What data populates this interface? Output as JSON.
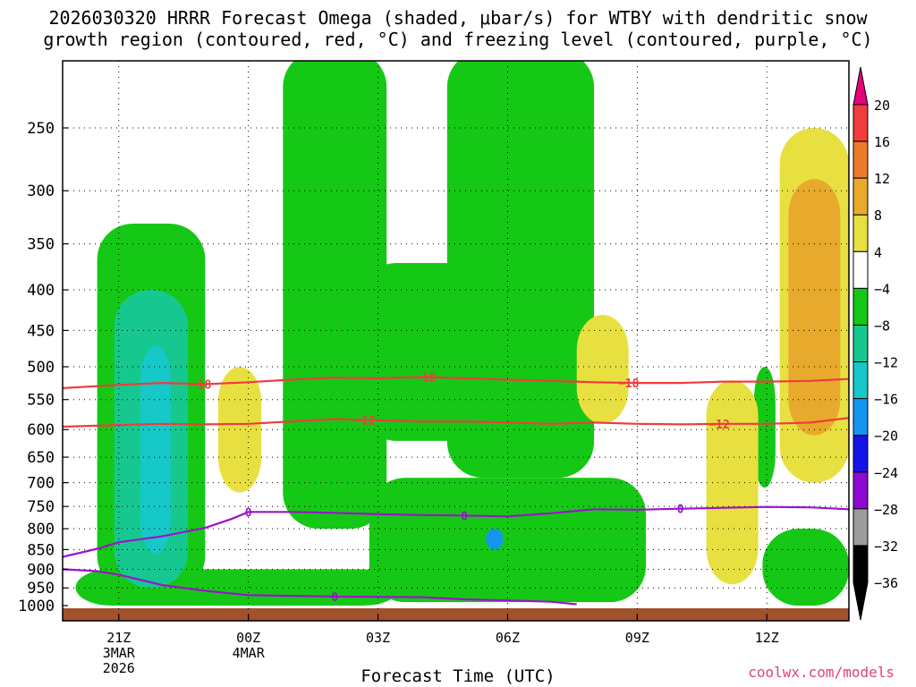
{
  "title_line1": "2026030320 HRRR Forecast Omega (shaded, μbar/s) for WTBY with dendritic snow",
  "title_line2": "growth region (contoured, red, °C) and freezing level (contoured, purple, °C)",
  "xlabel": "Forecast Time (UTC)",
  "credit": "coolwx.com/models",
  "chart_data": {
    "type": "heatmap",
    "y_axis": {
      "scale": "log",
      "reversed": true,
      "range": [
        200,
        1000
      ],
      "ticks": [
        250,
        300,
        350,
        400,
        450,
        500,
        550,
        600,
        650,
        700,
        750,
        800,
        850,
        900,
        950,
        1000
      ]
    },
    "x_axis": {
      "range_hours": [
        19.7,
        37.9
      ],
      "ticks": [
        {
          "hour": 21,
          "lines": [
            "21Z",
            "3MAR",
            "2026"
          ]
        },
        {
          "hour": 24,
          "lines": [
            "00Z",
            "4MAR"
          ]
        },
        {
          "hour": 27,
          "lines": [
            "03Z"
          ]
        },
        {
          "hour": 30,
          "lines": [
            "06Z"
          ]
        },
        {
          "hour": 33,
          "lines": [
            "09Z"
          ]
        },
        {
          "hour": 36,
          "lines": [
            "12Z"
          ]
        }
      ]
    },
    "grid": true,
    "colorbar": {
      "labels": [
        "20",
        "16",
        "12",
        "8",
        "4",
        "−4",
        "−8",
        "−12",
        "−16",
        "−20",
        "−24",
        "−28",
        "−32",
        "−36"
      ],
      "colors": [
        "#e8007a",
        "#f03c3c",
        "#ec7a2a",
        "#e8aa2c",
        "#e8e040",
        "#ffffff",
        "#16c816",
        "#16c890",
        "#16c8c8",
        "#1496f0",
        "#1414e8",
        "#8c0ad2",
        "#9c9c9c",
        "#000000"
      ]
    },
    "contours": {
      "dgz_red": [
        {
          "label": "−18",
          "level_c": -18,
          "points": [
            [
              19.7,
              532
            ],
            [
              21,
              527
            ],
            [
              22,
              524
            ],
            [
              23,
              526
            ],
            [
              24,
              523
            ],
            [
              25,
              519
            ],
            [
              26,
              516
            ],
            [
              27,
              517
            ],
            [
              28,
              515
            ],
            [
              29,
              517
            ],
            [
              30,
              519
            ],
            [
              31,
              521
            ],
            [
              32,
              523
            ],
            [
              33,
              524
            ],
            [
              34,
              524
            ],
            [
              35,
              522
            ],
            [
              36,
              522
            ],
            [
              37,
              521
            ],
            [
              37.9,
              518
            ]
          ],
          "label_hours": [
            22.9,
            28.1,
            32.8
          ]
        },
        {
          "label": "−12",
          "level_c": -12,
          "points": [
            [
              19.7,
              595
            ],
            [
              21,
              592
            ],
            [
              22,
              590
            ],
            [
              23,
              591
            ],
            [
              24,
              590
            ],
            [
              25,
              586
            ],
            [
              26,
              582
            ],
            [
              27,
              584
            ],
            [
              28,
              586
            ],
            [
              29,
              586
            ],
            [
              30,
              588
            ],
            [
              31,
              590
            ],
            [
              32,
              588
            ],
            [
              33,
              590
            ],
            [
              34,
              591
            ],
            [
              35,
              590
            ],
            [
              36,
              590
            ],
            [
              37,
              588
            ],
            [
              37.9,
              580
            ]
          ],
          "label_hours": [
            26.7,
            34.9
          ]
        }
      ],
      "freezing_purple": [
        {
          "label": "0",
          "level_c": 0,
          "points": [
            [
              19.7,
              868
            ],
            [
              20.5,
              848
            ],
            [
              21,
              832
            ],
            [
              22,
              818
            ],
            [
              23,
              798
            ],
            [
              23.6,
              778
            ],
            [
              24,
              762
            ],
            [
              25,
              762
            ],
            [
              26,
              764
            ],
            [
              27,
              767
            ],
            [
              28,
              769
            ],
            [
              29,
              770
            ],
            [
              30,
              772
            ],
            [
              31,
              765
            ],
            [
              32,
              756
            ],
            [
              33,
              757
            ],
            [
              34,
              755
            ],
            [
              35,
              753
            ],
            [
              36,
              751
            ],
            [
              37,
              752
            ],
            [
              37.9,
              756
            ]
          ],
          "label_hours": [
            24,
            29,
            34
          ]
        },
        {
          "label": "0",
          "level_c": 0,
          "points": [
            [
              19.7,
              900
            ],
            [
              20.5,
              905
            ],
            [
              21,
              914
            ],
            [
              22,
              942
            ],
            [
              23,
              958
            ],
            [
              24,
              970
            ],
            [
              25,
              972
            ],
            [
              26,
              974
            ],
            [
              27,
              975
            ],
            [
              28,
              976
            ],
            [
              29,
              982
            ],
            [
              30,
              985
            ],
            [
              31,
              989
            ],
            [
              31.6,
              996
            ]
          ],
          "label_hours": [
            26
          ]
        }
      ]
    },
    "shading_regions": [
      {
        "level": "−4 to −8",
        "color": "#16c816",
        "hours": [
          20.5,
          23
        ],
        "pressure": [
          330,
          960
        ]
      },
      {
        "level": "−4 to −8",
        "color": "#16c816",
        "hours": [
          20,
          27.5
        ],
        "pressure": [
          900,
          1000
        ]
      },
      {
        "level": "−4 to −8",
        "color": "#16c816",
        "hours": [
          24.8,
          27.2
        ],
        "pressure": [
          200,
          800
        ]
      },
      {
        "level": "−4 to −8",
        "color": "#16c816",
        "hours": [
          26.6,
          29.4
        ],
        "pressure": [
          370,
          620
        ]
      },
      {
        "level": "−4 to −8",
        "color": "#16c816",
        "hours": [
          28.6,
          32
        ],
        "pressure": [
          200,
          690
        ]
      },
      {
        "level": "−4 to −8",
        "color": "#16c816",
        "hours": [
          26.8,
          33.2
        ],
        "pressure": [
          690,
          990
        ]
      },
      {
        "level": "−4 to −8",
        "color": "#16c816",
        "hours": [
          35.7,
          36.2
        ],
        "pressure": [
          500,
          710
        ]
      },
      {
        "level": "−4 to −8",
        "color": "#16c816",
        "hours": [
          35.9,
          37.9
        ],
        "pressure": [
          800,
          1000
        ]
      },
      {
        "level": "−8 to −12",
        "color": "#16c890",
        "hours": [
          20.9,
          22.6
        ],
        "pressure": [
          400,
          950
        ]
      },
      {
        "level": "−12 to −16",
        "color": "#16c8c8",
        "hours": [
          21.5,
          22.2
        ],
        "pressure": [
          470,
          860
        ]
      },
      {
        "level": "−16 to −20",
        "color": "#1496f0",
        "hours": [
          29.5,
          29.9
        ],
        "pressure": [
          800,
          850
        ]
      },
      {
        "level": "4 to 8",
        "color": "#e8e040",
        "hours": [
          23.3,
          24.3
        ],
        "pressure": [
          500,
          720
        ]
      },
      {
        "level": "4 to 8",
        "color": "#e8e040",
        "hours": [
          31.6,
          32.8
        ],
        "pressure": [
          430,
          590
        ]
      },
      {
        "level": "4 to 8",
        "color": "#e8e040",
        "hours": [
          34.6,
          35.8
        ],
        "pressure": [
          520,
          940
        ]
      },
      {
        "level": "4 to 8",
        "color": "#e8e040",
        "hours": [
          36.3,
          37.9
        ],
        "pressure": [
          250,
          700
        ]
      },
      {
        "level": "8 to 12",
        "color": "#e8aa2c",
        "hours": [
          36.5,
          37.7
        ],
        "pressure": [
          290,
          610
        ]
      }
    ]
  }
}
